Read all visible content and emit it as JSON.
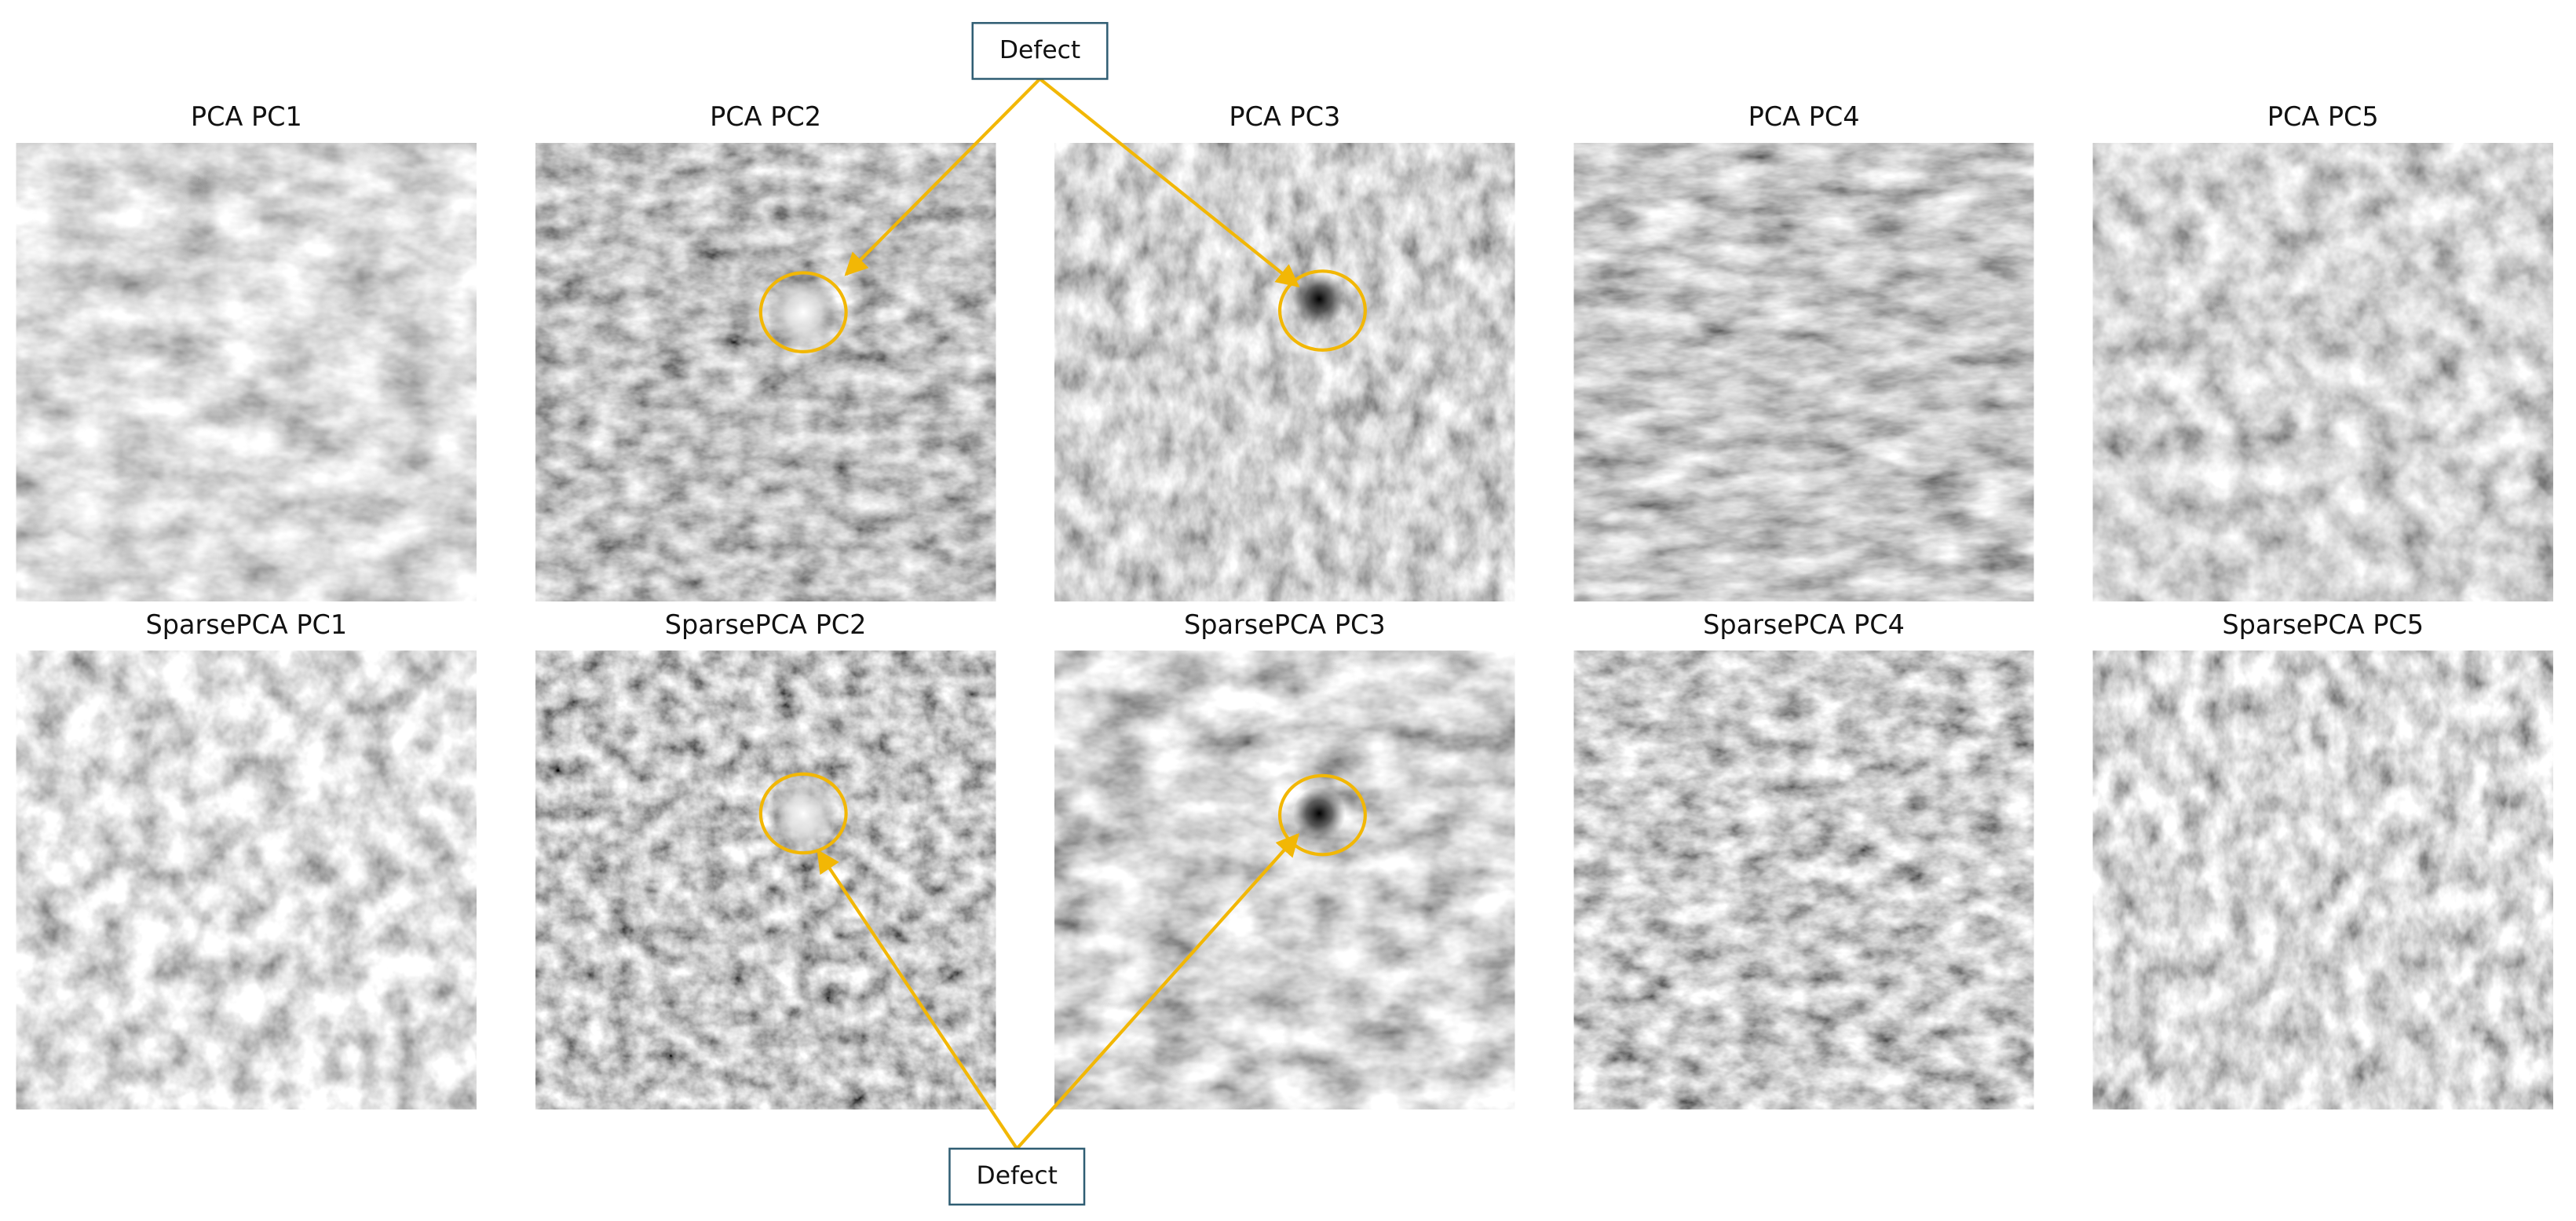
{
  "rows": [
    {
      "panels": [
        "PCA PC1",
        "PCA PC2",
        "PCA PC3",
        "PCA PC4",
        "PCA PC5"
      ]
    },
    {
      "panels": [
        "SparsePCA PC1",
        "SparsePCA PC2",
        "SparsePCA PC3",
        "SparsePCA PC4",
        "SparsePCA PC5"
      ]
    }
  ],
  "annotations": [
    {
      "label": "Defect"
    },
    {
      "label": "Defect"
    }
  ]
}
